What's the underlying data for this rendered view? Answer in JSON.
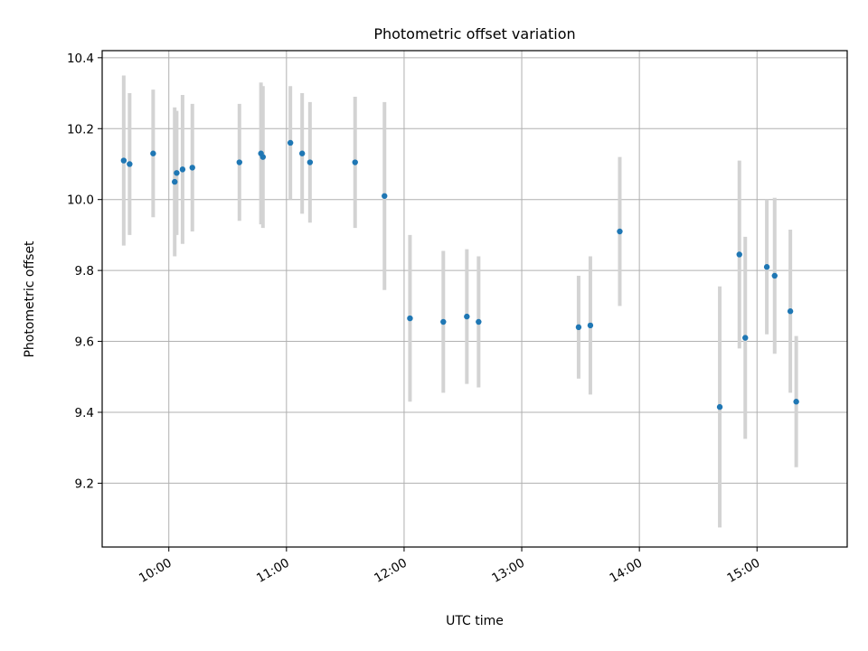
{
  "chart_data": {
    "type": "scatter",
    "title": "Photometric offset variation",
    "xlabel": "UTC time",
    "ylabel": "Photometric offset",
    "x_tick_labels": [
      "10:00",
      "11:00",
      "12:00",
      "13:00",
      "14:00",
      "15:00"
    ],
    "x_tick_values": [
      "10:00",
      "11:00",
      "12:00",
      "13:00",
      "14:00",
      "15:00"
    ],
    "y_ticks": [
      9.2,
      9.4,
      9.6,
      9.8,
      10.0,
      10.2,
      10.4
    ],
    "y_tick_labels": [
      "9.2",
      "9.4",
      "9.6",
      "9.8",
      "10.0",
      "10.2",
      "10.4"
    ],
    "xlim": [
      "09:26",
      "15:46"
    ],
    "ylim": [
      9.02,
      10.42
    ],
    "grid": true,
    "colors": {
      "point": "#1f77b4",
      "errorbar": "#d3d3d3"
    },
    "points": [
      {
        "x": "09:37",
        "y": 10.11,
        "yerr": 0.24
      },
      {
        "x": "09:40",
        "y": 10.1,
        "yerr": 0.2
      },
      {
        "x": "09:52",
        "y": 10.13,
        "yerr": 0.18
      },
      {
        "x": "10:03",
        "y": 10.05,
        "yerr": 0.21
      },
      {
        "x": "10:04",
        "y": 10.075,
        "yerr": 0.175
      },
      {
        "x": "10:07",
        "y": 10.085,
        "yerr": 0.21
      },
      {
        "x": "10:12",
        "y": 10.09,
        "yerr": 0.18
      },
      {
        "x": "10:36",
        "y": 10.105,
        "yerr": 0.165
      },
      {
        "x": "10:47",
        "y": 10.13,
        "yerr": 0.2
      },
      {
        "x": "10:48",
        "y": 10.12,
        "yerr": 0.2
      },
      {
        "x": "11:02",
        "y": 10.16,
        "yerr": 0.16
      },
      {
        "x": "11:08",
        "y": 10.13,
        "yerr": 0.17
      },
      {
        "x": "11:12",
        "y": 10.105,
        "yerr": 0.17
      },
      {
        "x": "11:35",
        "y": 10.105,
        "yerr": 0.185
      },
      {
        "x": "11:50",
        "y": 10.01,
        "yerr": 0.265
      },
      {
        "x": "12:03",
        "y": 9.665,
        "yerr": 0.235
      },
      {
        "x": "12:20",
        "y": 9.655,
        "yerr": 0.2
      },
      {
        "x": "12:32",
        "y": 9.67,
        "yerr": 0.19
      },
      {
        "x": "12:38",
        "y": 9.655,
        "yerr": 0.185
      },
      {
        "x": "13:29",
        "y": 9.64,
        "yerr": 0.145
      },
      {
        "x": "13:35",
        "y": 9.645,
        "yerr": 0.195
      },
      {
        "x": "13:50",
        "y": 9.91,
        "yerr": 0.21
      },
      {
        "x": "14:41",
        "y": 9.415,
        "yerr": 0.34
      },
      {
        "x": "14:51",
        "y": 9.845,
        "yerr": 0.265
      },
      {
        "x": "14:54",
        "y": 9.61,
        "yerr": 0.285
      },
      {
        "x": "15:05",
        "y": 9.81,
        "yerr": 0.19
      },
      {
        "x": "15:09",
        "y": 9.785,
        "yerr": 0.22
      },
      {
        "x": "15:17",
        "y": 9.685,
        "yerr": 0.23
      },
      {
        "x": "15:20",
        "y": 9.43,
        "yerr": 0.185
      }
    ]
  }
}
